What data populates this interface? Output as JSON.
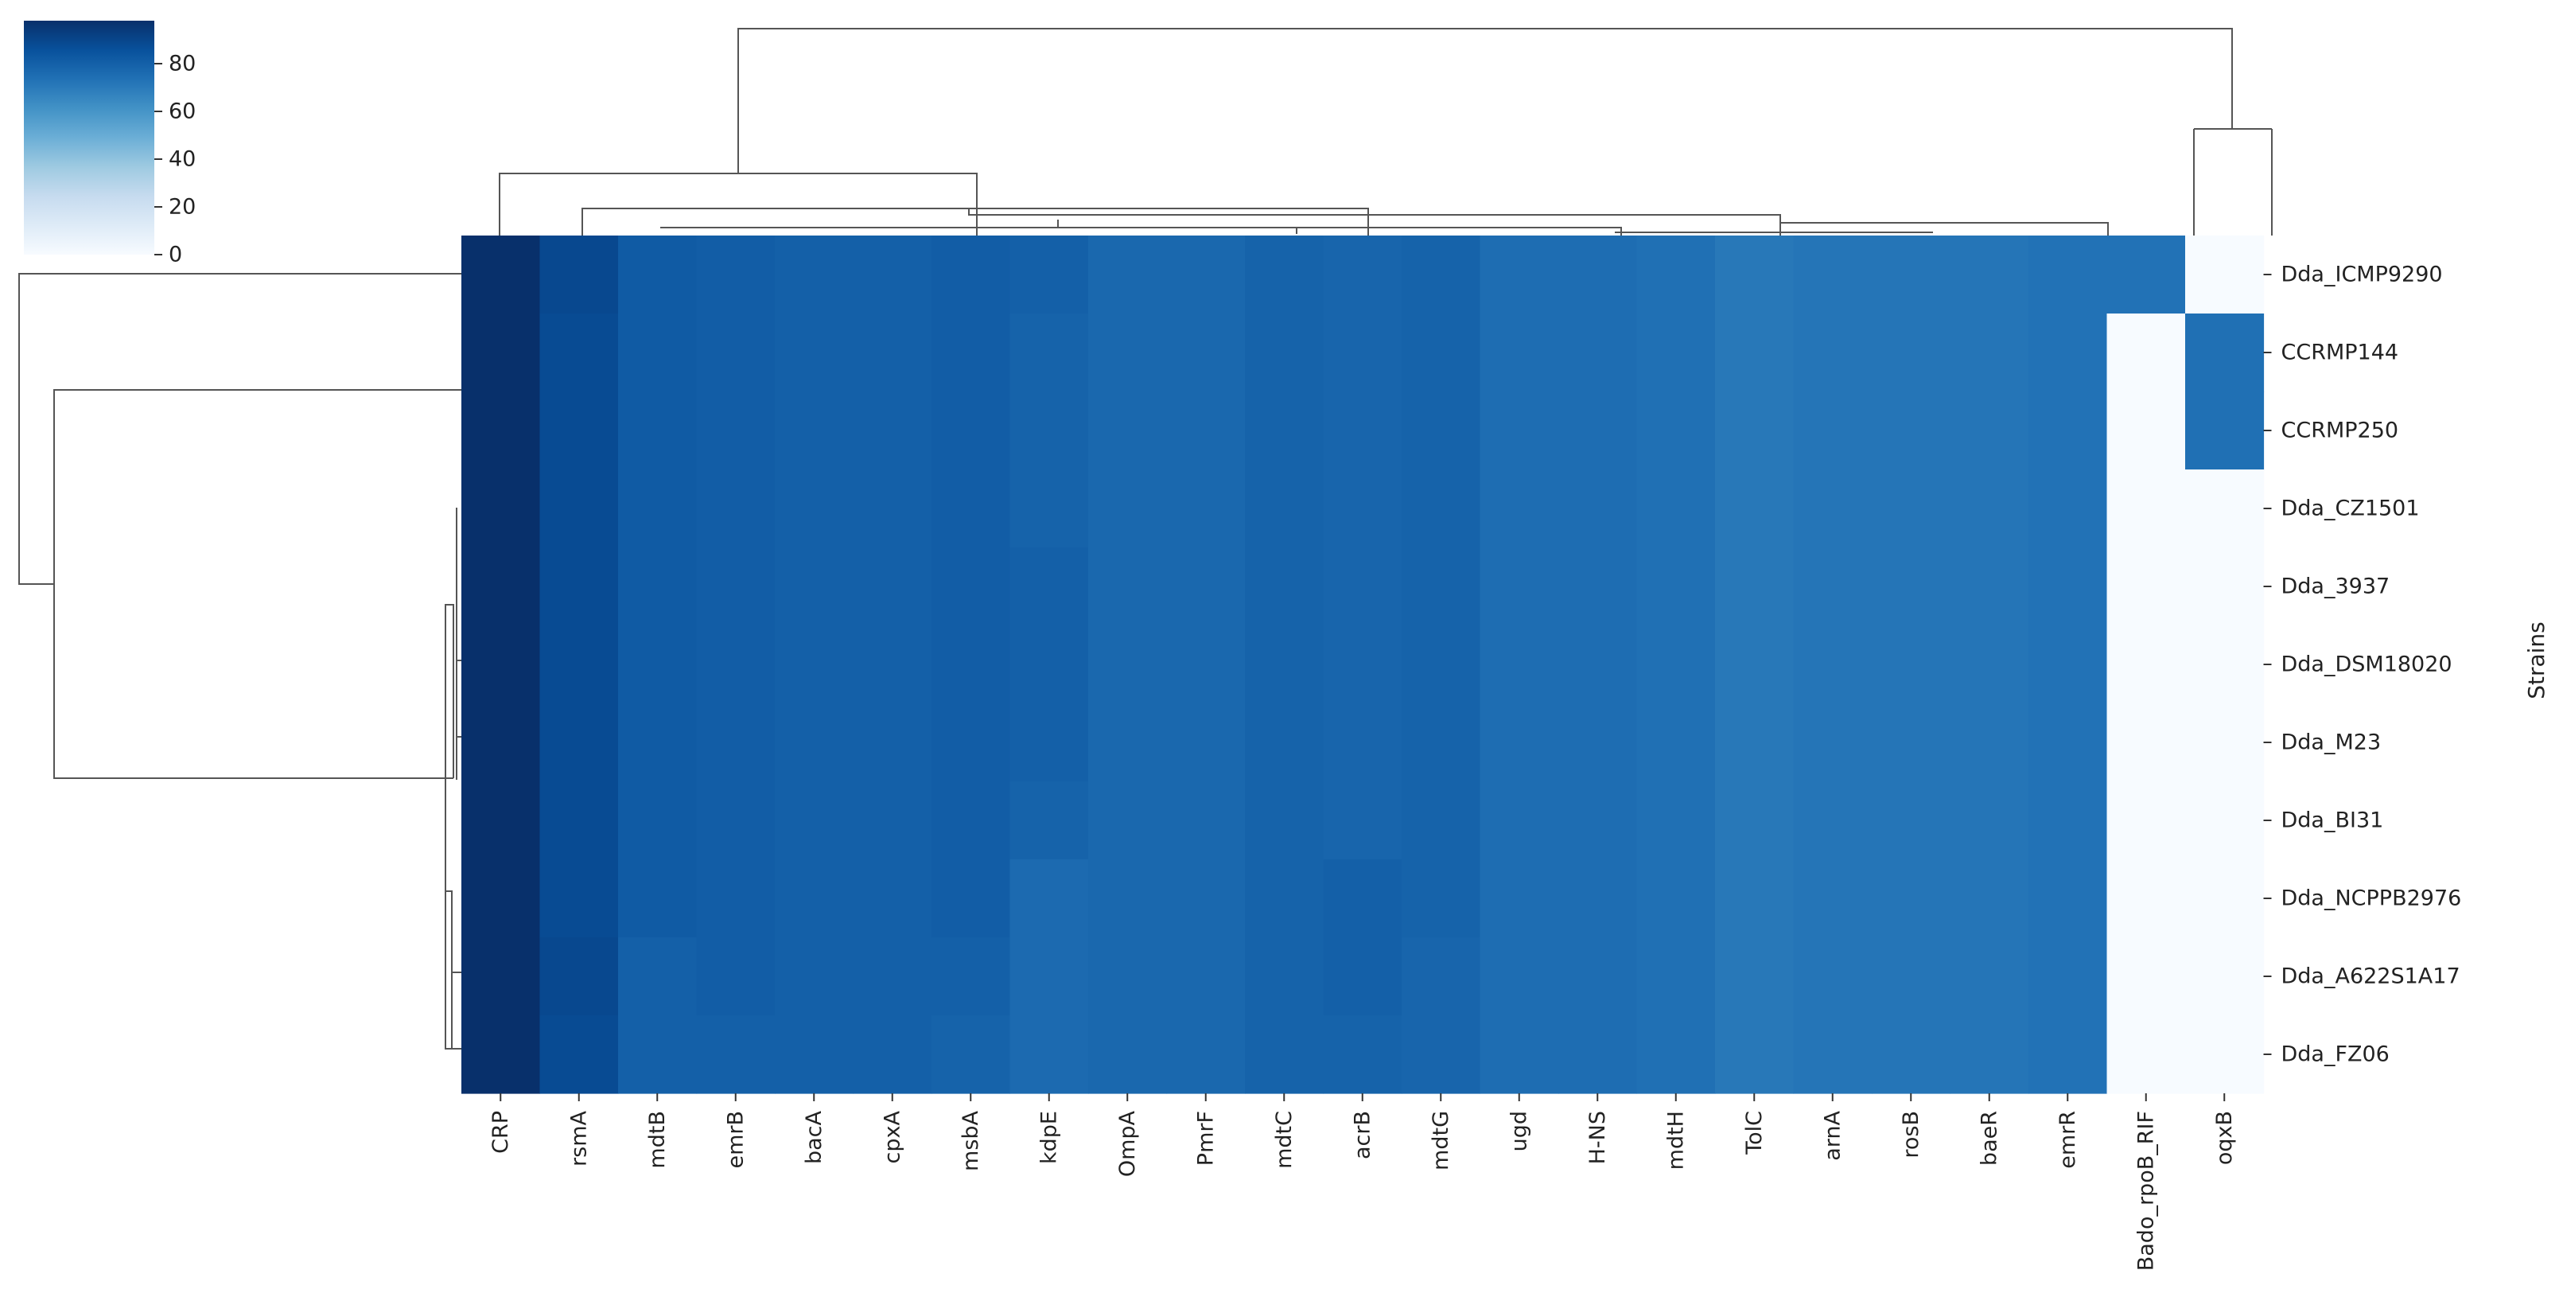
{
  "chart_data": {
    "type": "heatmap",
    "columns": [
      "CRP",
      "rsmA",
      "mdtB",
      "emrB",
      "bacA",
      "cpxA",
      "msbA",
      "kdpE",
      "OmpA",
      "PmrF",
      "mdtC",
      "acrB",
      "mdtG",
      "ugd",
      "H-NS",
      "mdtH",
      "TolC",
      "arnA",
      "rosB",
      "baeR",
      "emrR",
      "Bado_rpoB_RIF",
      "oqxB"
    ],
    "rows": [
      "Dda_ICMP9290",
      "CCRMP144",
      "CCRMP250",
      "Dda_CZ1501",
      "Dda_3937",
      "Dda_DSM18020",
      "Dda_M23",
      "Dda_BI31",
      "Dda_NCPPB2976",
      "Dda_A622S1A17",
      "Dda_FZ06"
    ],
    "values": [
      [
        98,
        89,
        82,
        81,
        80,
        80,
        81,
        80,
        77,
        77,
        79,
        78,
        79,
        75,
        75,
        74,
        71,
        72,
        72,
        72,
        73,
        73,
        0
      ],
      [
        98,
        88,
        82,
        81,
        80,
        80,
        81,
        79,
        77,
        77,
        79,
        78,
        79,
        75,
        75,
        74,
        71,
        72,
        72,
        72,
        73,
        0,
        74
      ],
      [
        98,
        88,
        82,
        81,
        80,
        80,
        81,
        79,
        77,
        77,
        79,
        78,
        79,
        75,
        75,
        74,
        71,
        72,
        72,
        72,
        73,
        0,
        74
      ],
      [
        98,
        88,
        82,
        81,
        80,
        80,
        81,
        79,
        77,
        77,
        79,
        78,
        79,
        75,
        75,
        74,
        71,
        72,
        72,
        72,
        73,
        0,
        0
      ],
      [
        98,
        88,
        82,
        81,
        80,
        80,
        81,
        80,
        77,
        77,
        79,
        78,
        79,
        75,
        75,
        74,
        71,
        72,
        72,
        72,
        73,
        0,
        0
      ],
      [
        98,
        88,
        82,
        81,
        80,
        80,
        81,
        80,
        77,
        77,
        79,
        78,
        79,
        75,
        75,
        74,
        71,
        72,
        72,
        72,
        73,
        0,
        0
      ],
      [
        98,
        88,
        82,
        81,
        80,
        80,
        81,
        80,
        77,
        77,
        79,
        78,
        79,
        75,
        75,
        74,
        71,
        72,
        72,
        72,
        73,
        0,
        0
      ],
      [
        98,
        88,
        82,
        81,
        80,
        80,
        81,
        79,
        77,
        77,
        79,
        78,
        79,
        75,
        75,
        74,
        71,
        72,
        72,
        72,
        73,
        0,
        0
      ],
      [
        98,
        88,
        82,
        81,
        80,
        80,
        81,
        76,
        77,
        77,
        79,
        80,
        79,
        75,
        75,
        74,
        71,
        72,
        72,
        72,
        73,
        0,
        0
      ],
      [
        98,
        89,
        80,
        81,
        80,
        80,
        80,
        76,
        77,
        77,
        79,
        80,
        78,
        75,
        75,
        74,
        71,
        72,
        72,
        72,
        73,
        0,
        0
      ],
      [
        98,
        88,
        80,
        80,
        80,
        80,
        79,
        76,
        77,
        77,
        79,
        79,
        78,
        75,
        75,
        74,
        71,
        72,
        72,
        72,
        73,
        0,
        0
      ]
    ],
    "ylabel": "Strains",
    "vmin": 0,
    "vmax": 98,
    "colorbar": {
      "ticks": [
        0,
        20,
        40,
        60,
        80
      ],
      "tick_labels": [
        "0",
        "20",
        "40",
        "60",
        "80"
      ],
      "placement": "top-left"
    },
    "colormap": [
      "#f7fbff",
      "#deebf7",
      "#c6dbef",
      "#9ecae1",
      "#6baed6",
      "#4292c6",
      "#2171b5",
      "#08519c",
      "#08306b"
    ],
    "row_dendrogram": {
      "placement": "left"
    },
    "column_dendrogram": {
      "placement": "top"
    }
  }
}
